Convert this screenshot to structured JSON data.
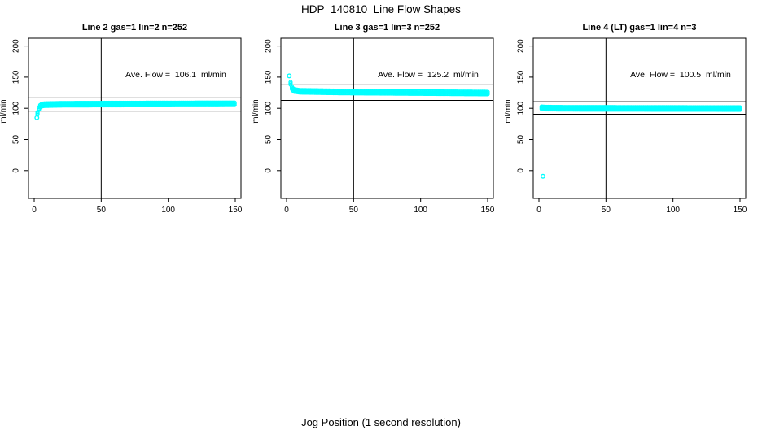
{
  "figure": {
    "title": "HDP_140810  Line Flow Shapes",
    "xlabel": "Jog Position (1 second resolution)",
    "background": "#FFFFFF"
  },
  "chart_data": [
    {
      "type": "scatter",
      "title": "Line 2 gas=1 lin=2 n=252",
      "line": "Line 2",
      "gas": 1,
      "lin": 2,
      "n": 252,
      "annotation": "Ave. Flow =  106.1  ml/min",
      "ave_flow_ml_min": 106.1,
      "ylabel": "ml/min",
      "marker": "open-circle",
      "marker_color": "#00FFFF",
      "axis_color": "#000000",
      "xlim": [
        0,
        150
      ],
      "ylim": [
        0,
        200
      ],
      "xticks": [
        0,
        50,
        100,
        150
      ],
      "yticks": [
        0,
        50,
        100,
        150,
        200
      ],
      "vline_x": 50,
      "ref_lines": {
        "upper": 116.7,
        "lower": 95.5
      },
      "profile": [
        [
          2.5,
          92
        ],
        [
          3,
          97
        ],
        [
          4,
          102
        ],
        [
          5,
          104.5
        ],
        [
          7,
          105.8
        ],
        [
          20,
          106.5
        ],
        [
          60,
          106.8
        ],
        [
          150,
          107.2
        ]
      ],
      "outliers": [
        [
          2,
          85
        ]
      ]
    },
    {
      "type": "scatter",
      "title": "Line 3 gas=1 lin=3 n=252",
      "line": "Line 3",
      "gas": 1,
      "lin": 3,
      "n": 252,
      "annotation": "Ave. Flow =  125.2  ml/min",
      "ave_flow_ml_min": 125.2,
      "ylabel": "ml/min",
      "marker": "open-circle",
      "marker_color": "#00FFFF",
      "axis_color": "#000000",
      "xlim": [
        0,
        150
      ],
      "ylim": [
        0,
        200
      ],
      "xticks": [
        0,
        50,
        100,
        150
      ],
      "yticks": [
        0,
        50,
        100,
        150,
        200
      ],
      "vline_x": 50,
      "ref_lines": {
        "upper": 137.7,
        "lower": 112.7
      },
      "profile": [
        [
          3,
          140
        ],
        [
          3.7,
          134
        ],
        [
          4.5,
          130.5
        ],
        [
          6,
          128.5
        ],
        [
          10,
          127.3
        ],
        [
          40,
          126.2
        ],
        [
          100,
          125.3
        ],
        [
          150,
          124.5
        ]
      ],
      "outliers": [
        [
          2,
          152
        ]
      ]
    },
    {
      "type": "scatter",
      "title": "Line 4 (LT) gas=1 lin=4 n=3",
      "line": "Line 4 (LT)",
      "gas": 1,
      "lin": 4,
      "n": 3,
      "annotation": "Ave. Flow =  100.5  ml/min",
      "ave_flow_ml_min": 100.5,
      "ylabel": "ml/min",
      "marker": "open-circle",
      "marker_color": "#00FFFF",
      "axis_color": "#000000",
      "xlim": [
        0,
        150
      ],
      "ylim": [
        0,
        200
      ],
      "xticks": [
        0,
        50,
        100,
        150
      ],
      "yticks": [
        0,
        50,
        100,
        150,
        200
      ],
      "vline_x": 50,
      "ref_lines": {
        "upper": 110.6,
        "lower": 90.5
      },
      "profile": [
        [
          2,
          100.8
        ],
        [
          5,
          100.3
        ],
        [
          20,
          100
        ],
        [
          150,
          99.6
        ]
      ],
      "outliers": [
        [
          3,
          -9
        ]
      ]
    }
  ]
}
